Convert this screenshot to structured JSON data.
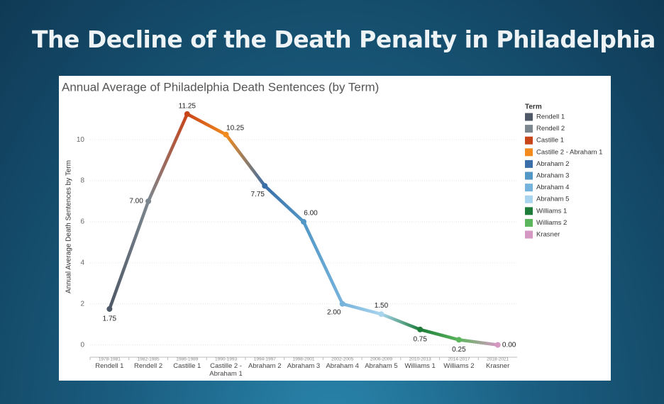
{
  "slide_title": "The Decline of the Death Penalty in Philadelphia",
  "chart_data": {
    "type": "line",
    "title": "Annual Average of Philadelphia Death Sentences (by Term)",
    "y_label": "Annual Average Death Sentences by Term",
    "legend_title": "Term",
    "categories": [
      "Rendell 1",
      "Rendell 2",
      "Castille 1",
      "Castille 2 - Abraham 1",
      "Abraham 2",
      "Abraham 3",
      "Abraham 4",
      "Abraham 5",
      "Williams 1",
      "Williams 2",
      "Krasner"
    ],
    "periods": [
      "1978-1981",
      "1982-1985",
      "1986-1989",
      "1990-1993",
      "1994-1997",
      "1998-2001",
      "2002-2005",
      "2006-2009",
      "2010-2013",
      "2014-2017",
      "2018-2021"
    ],
    "values": [
      1.75,
      7,
      11.25,
      10.25,
      7.75,
      6,
      2,
      1.5,
      0.75,
      0.25,
      0
    ],
    "value_labels": [
      "1.75",
      "7.00",
      "11.25",
      "10.25",
      "7.75",
      "6.00",
      "2.00",
      "1.50",
      "0.75",
      "0.25",
      "0.00"
    ],
    "colors": [
      "#4e5866",
      "#7c868e",
      "#c8451a",
      "#f28a1e",
      "#3a6ea8",
      "#5297c6",
      "#76b3dc",
      "#a9d4ee",
      "#1d7c39",
      "#5bb55c",
      "#d598c3"
    ],
    "ylim": [
      -0.6,
      11.8
    ],
    "yticks": [
      0,
      2,
      4,
      6,
      8,
      10
    ],
    "grid": true,
    "legend_position": "right"
  }
}
